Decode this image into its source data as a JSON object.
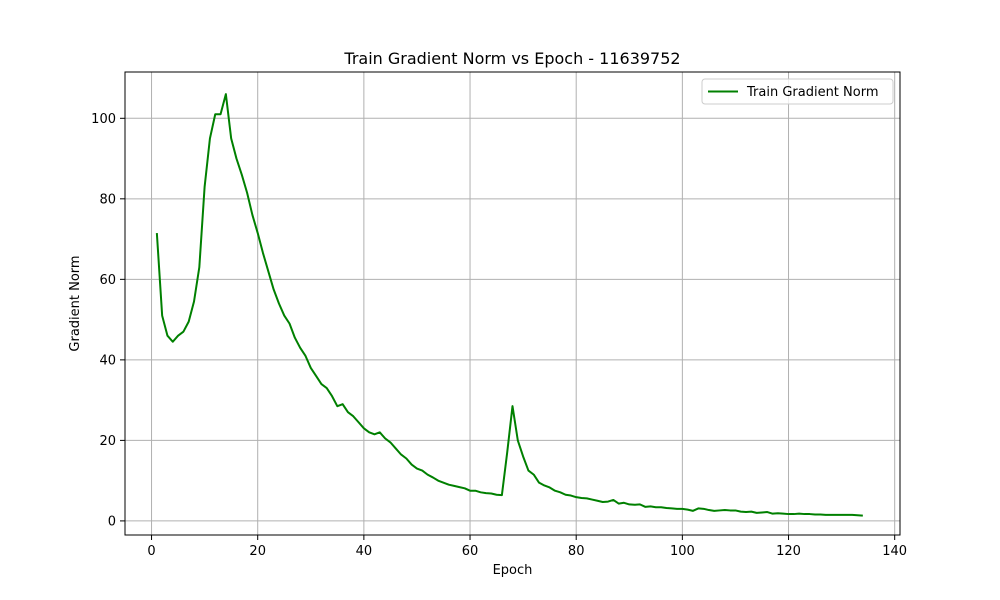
{
  "chart_data": {
    "type": "line",
    "title": "Train Gradient Norm vs Epoch - 11639752",
    "xlabel": "Epoch",
    "ylabel": "Gradient Norm",
    "xlim": [
      -5,
      141
    ],
    "ylim": [
      -3.5,
      111.5
    ],
    "xticks": [
      0,
      20,
      40,
      60,
      80,
      100,
      120,
      140
    ],
    "yticks": [
      0,
      20,
      40,
      60,
      80,
      100
    ],
    "grid": true,
    "legend_position": "top-right",
    "series": [
      {
        "name": "Train Gradient Norm",
        "color": "#008000",
        "x": [
          1,
          2,
          3,
          4,
          5,
          6,
          7,
          8,
          9,
          10,
          11,
          12,
          13,
          14,
          15,
          16,
          17,
          18,
          19,
          20,
          21,
          22,
          23,
          24,
          25,
          26,
          27,
          28,
          29,
          30,
          31,
          32,
          33,
          34,
          35,
          36,
          37,
          38,
          39,
          40,
          41,
          42,
          43,
          44,
          45,
          46,
          47,
          48,
          49,
          50,
          51,
          52,
          53,
          54,
          55,
          56,
          57,
          58,
          59,
          60,
          61,
          62,
          63,
          64,
          65,
          66,
          67,
          68,
          69,
          70,
          71,
          72,
          73,
          74,
          75,
          76,
          77,
          78,
          79,
          80,
          81,
          82,
          83,
          84,
          85,
          86,
          87,
          88,
          89,
          90,
          91,
          92,
          93,
          94,
          95,
          96,
          97,
          98,
          99,
          100,
          101,
          102,
          103,
          104,
          105,
          106,
          107,
          108,
          109,
          110,
          111,
          112,
          113,
          114,
          115,
          116,
          117,
          118,
          119,
          120,
          121,
          122,
          123,
          124,
          125,
          126,
          127,
          128,
          129,
          130,
          131,
          132,
          133,
          134
        ],
        "y": [
          71.5,
          51,
          46,
          44.5,
          46,
          47,
          49.5,
          54.5,
          63,
          83,
          95,
          101,
          101,
          106,
          95,
          90,
          86,
          81.5,
          76,
          71.5,
          66.5,
          62,
          57.5,
          54,
          51,
          49,
          45.5,
          43,
          41,
          38,
          36,
          34,
          33,
          31,
          28.5,
          29,
          27,
          26,
          24.5,
          23,
          22,
          21.5,
          22,
          20.5,
          19.5,
          18,
          16.5,
          15.5,
          14,
          13,
          12.5,
          11.5,
          10.8,
          10,
          9.5,
          9,
          8.7,
          8.4,
          8.1,
          7.5,
          7.5,
          7.1,
          6.9,
          6.8,
          6.5,
          6.4,
          17,
          28.5,
          20,
          16,
          12.5,
          11.5,
          9.5,
          8.8,
          8.3,
          7.5,
          7.1,
          6.5,
          6.3,
          5.9,
          5.7,
          5.6,
          5.3,
          5,
          4.7,
          4.8,
          5.2,
          4.3,
          4.5,
          4.1,
          4,
          4.1,
          3.5,
          3.6,
          3.4,
          3.4,
          3.2,
          3.1,
          3,
          3,
          2.8,
          2.5,
          3.1,
          3,
          2.7,
          2.5,
          2.6,
          2.7,
          2.6,
          2.6,
          2.3,
          2.2,
          2.3,
          2,
          2.1,
          2.2,
          1.8,
          1.9,
          1.8,
          1.7,
          1.7,
          1.8,
          1.7,
          1.7,
          1.6,
          1.6,
          1.5,
          1.5,
          1.5,
          1.5,
          1.5,
          1.5,
          1.4,
          1.3
        ]
      }
    ]
  }
}
